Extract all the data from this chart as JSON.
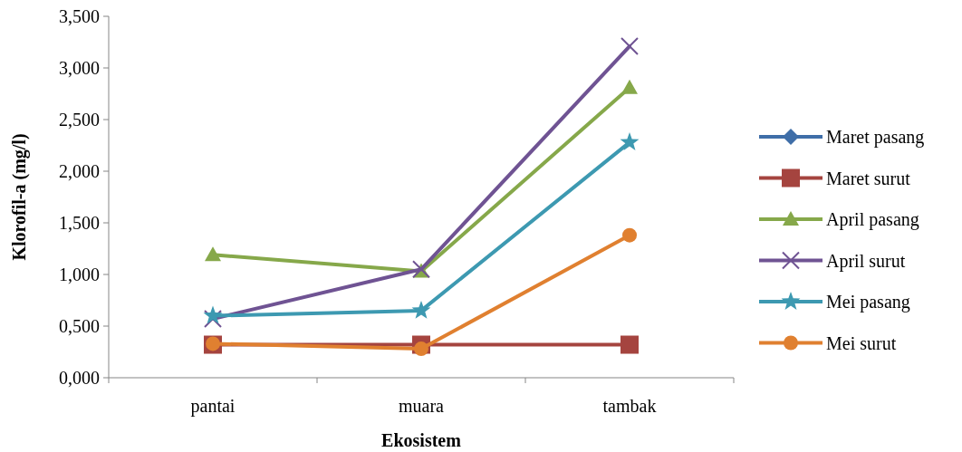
{
  "chart_data": {
    "type": "line",
    "xlabel": "Ekosistem",
    "ylabel": "Klorofil-a (mg/l)",
    "categories": [
      "pantai",
      "muara",
      "tambak"
    ],
    "ylim": [
      0,
      3.5
    ],
    "yticks": [
      {
        "value": 0,
        "label": "0,000"
      },
      {
        "value": 0.5,
        "label": "0,500"
      },
      {
        "value": 1,
        "label": "1,000"
      },
      {
        "value": 1.5,
        "label": "1,500"
      },
      {
        "value": 2,
        "label": "2,000"
      },
      {
        "value": 2.5,
        "label": "2,500"
      },
      {
        "value": 3,
        "label": "3,000"
      },
      {
        "value": 3.5,
        "label": "3,500"
      }
    ],
    "grid": false,
    "legend": "right",
    "series": [
      {
        "name": "Maret pasang",
        "color": "#3f6ea8",
        "marker": "diamond",
        "values": [
          null,
          null,
          null
        ]
      },
      {
        "name": "Maret surut",
        "color": "#a5443f",
        "marker": "square",
        "values": [
          0.32,
          0.32,
          0.32
        ]
      },
      {
        "name": "April pasang",
        "color": "#86a84a",
        "marker": "triangle",
        "values": [
          1.19,
          1.03,
          2.81
        ]
      },
      {
        "name": "April surut",
        "color": "#6f5393",
        "marker": "cross",
        "values": [
          0.57,
          1.05,
          3.21
        ]
      },
      {
        "name": "Mei pasang",
        "color": "#3d99b1",
        "marker": "star",
        "values": [
          0.6,
          0.65,
          2.28
        ]
      },
      {
        "name": "Mei surut",
        "color": "#e08030",
        "marker": "circle",
        "values": [
          0.33,
          0.28,
          1.38
        ]
      }
    ]
  }
}
